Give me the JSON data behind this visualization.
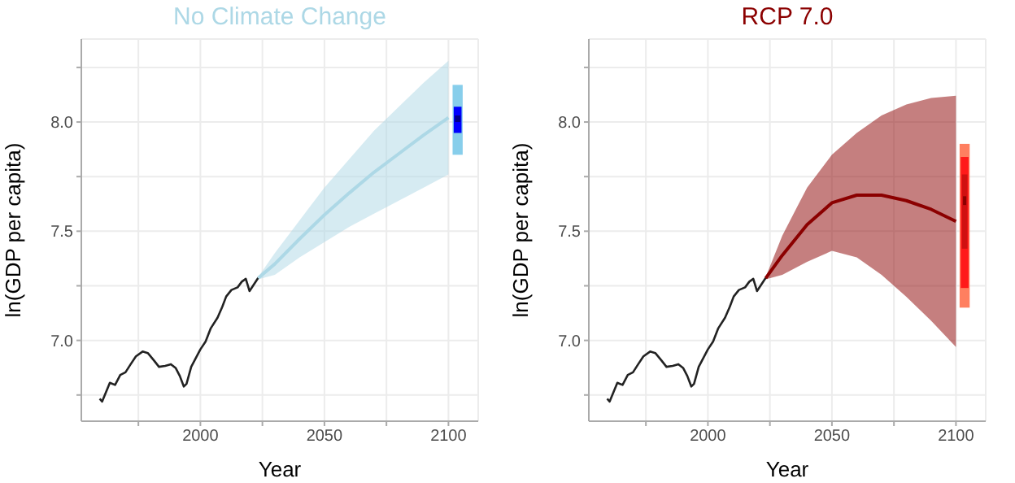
{
  "chart_data": [
    {
      "type": "line",
      "title": "No Climate Change",
      "xlabel": "Year",
      "ylabel": "ln(GDP per capita)",
      "xlim": [
        1952,
        2112
      ],
      "ylim": [
        6.63,
        8.38
      ],
      "xticks": [
        {
          "value": 1975,
          "label": null
        },
        2000,
        {
          "value": 2025,
          "label": null
        },
        2050,
        {
          "value": 2075,
          "label": null
        },
        2100
      ],
      "yticks": [
        {
          "value": 6.75,
          "label": null
        },
        {
          "value": 7.0,
          "label": "7.0"
        },
        {
          "value": 7.25,
          "label": null
        },
        7.5,
        {
          "value": 7.75,
          "label": null
        },
        {
          "value": 8.0,
          "label": "8.0"
        },
        {
          "value": 8.25,
          "label": null
        }
      ],
      "grid": true,
      "series": [
        {
          "type": "line",
          "color": "#222222",
          "x": [
            1959.4,
            1960.4,
            1963.5,
            1965.6,
            1967.7,
            1969.8,
            1971.9,
            1974,
            1976.7,
            1978.8,
            1981.3,
            1983.3,
            1985.8,
            1988.1,
            1990,
            1991.7,
            1993.3,
            1994.4,
            1996.3,
            2000,
            2002.1,
            2004.2,
            2006.9,
            2008.8,
            2010.4,
            2012.5,
            2015,
            2016.7,
            2018.3,
            2019.8,
            2021.9,
            2023.3
          ],
          "values": [
            6.733,
            6.72,
            6.806,
            6.796,
            6.842,
            6.854,
            6.891,
            6.927,
            6.949,
            6.942,
            6.908,
            6.879,
            6.883,
            6.891,
            6.874,
            6.837,
            6.789,
            6.801,
            6.879,
            6.959,
            6.995,
            7.056,
            7.104,
            7.153,
            7.201,
            7.231,
            7.243,
            7.269,
            7.282,
            7.226,
            7.262,
            7.286
          ]
        },
        {
          "type": "line",
          "color": "#add8e6",
          "x": [
            2023.3,
            2030,
            2040,
            2050,
            2060,
            2070,
            2080,
            2090,
            2100
          ],
          "values": [
            7.285,
            7.35,
            7.465,
            7.575,
            7.675,
            7.77,
            7.855,
            7.94,
            8.02
          ],
          "lower": [
            7.28,
            7.3,
            7.38,
            7.45,
            7.52,
            7.58,
            7.64,
            7.7,
            7.76
          ],
          "upper": [
            7.29,
            7.4,
            7.55,
            7.7,
            7.83,
            7.96,
            8.07,
            8.18,
            8.28
          ]
        },
        {
          "type": "bar",
          "x": [
            2103.7
          ],
          "base": [
            7.85
          ],
          "values": [
            0.32
          ],
          "color": "#87ceeb"
        },
        {
          "type": "bar",
          "x": [
            2103.7
          ],
          "base": [
            7.95
          ],
          "values": [
            0.12
          ],
          "color": "#0000ff"
        },
        {
          "type": "bar",
          "x": [
            2103.7
          ],
          "base": [
            8.0
          ],
          "values": [
            0.03
          ],
          "color": "#00008b"
        }
      ]
    },
    {
      "type": "line",
      "title": "RCP 7.0",
      "xlabel": "Year",
      "ylabel": "ln(GDP per capita)",
      "xlim": [
        1952,
        2112
      ],
      "ylim": [
        6.63,
        8.38
      ],
      "xticks": [
        {
          "value": 1975,
          "label": null
        },
        2000,
        {
          "value": 2025,
          "label": null
        },
        2050,
        {
          "value": 2075,
          "label": null
        },
        2100
      ],
      "yticks": [
        {
          "value": 6.75,
          "label": null
        },
        {
          "value": 7.0,
          "label": "7.0"
        },
        {
          "value": 7.25,
          "label": null
        },
        7.5,
        {
          "value": 7.75,
          "label": null
        },
        {
          "value": 8.0,
          "label": "8.0"
        },
        {
          "value": 8.25,
          "label": null
        }
      ],
      "grid": true,
      "series": [
        {
          "type": "line",
          "color": "#222222",
          "x": [
            1959.4,
            1960.4,
            1963.5,
            1965.6,
            1967.7,
            1969.8,
            1971.9,
            1974,
            1976.7,
            1978.8,
            1981.3,
            1983.3,
            1985.8,
            1988.1,
            1990,
            1991.7,
            1993.3,
            1994.4,
            1996.3,
            2000,
            2002.1,
            2004.2,
            2006.9,
            2008.8,
            2010.4,
            2012.5,
            2015,
            2016.7,
            2018.3,
            2019.8,
            2021.9,
            2023.3
          ],
          "values": [
            6.733,
            6.72,
            6.806,
            6.796,
            6.842,
            6.854,
            6.891,
            6.927,
            6.949,
            6.942,
            6.908,
            6.879,
            6.883,
            6.891,
            6.874,
            6.837,
            6.789,
            6.801,
            6.879,
            6.959,
            6.995,
            7.056,
            7.104,
            7.153,
            7.201,
            7.231,
            7.243,
            7.269,
            7.282,
            7.226,
            7.262,
            7.286
          ]
        },
        {
          "type": "line",
          "color": "#8b0000",
          "x": [
            2023.3,
            2030,
            2040,
            2050,
            2060,
            2070,
            2080,
            2090,
            2100
          ],
          "values": [
            7.285,
            7.39,
            7.53,
            7.63,
            7.665,
            7.665,
            7.64,
            7.6,
            7.545
          ],
          "lower": [
            7.28,
            7.3,
            7.36,
            7.41,
            7.38,
            7.3,
            7.2,
            7.09,
            6.97
          ],
          "upper": [
            7.29,
            7.48,
            7.7,
            7.85,
            7.95,
            8.03,
            8.08,
            8.11,
            8.12
          ]
        },
        {
          "type": "bar",
          "x": [
            2103.5
          ],
          "base": [
            7.15
          ],
          "values": [
            0.75
          ],
          "color": "#ff7f60"
        },
        {
          "type": "bar",
          "x": [
            2103.5
          ],
          "base": [
            7.24
          ],
          "values": [
            0.6
          ],
          "color": "#ff1a1a"
        },
        {
          "type": "bar",
          "x": [
            2103.5
          ],
          "base": [
            7.42
          ],
          "values": [
            0.34
          ],
          "color": "#d01010"
        },
        {
          "type": "bar",
          "x": [
            2103.5
          ],
          "base": [
            7.62
          ],
          "values": [
            0.04
          ],
          "color": "#8b0000"
        }
      ]
    }
  ]
}
